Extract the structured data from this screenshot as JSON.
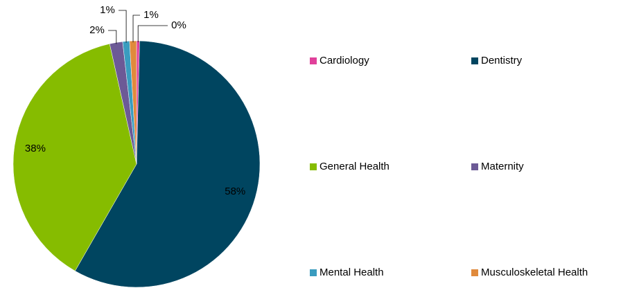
{
  "chart_data": {
    "type": "pie",
    "categories": [
      "Cardiology",
      "Dentistry",
      "General Health",
      "Maternity",
      "Mental Health",
      "Musculoskeletal Health"
    ],
    "values": [
      0.4,
      57.9,
      38.2,
      1.7,
      0.9,
      0.9
    ],
    "value_labels": [
      "0%",
      "58%",
      "38%",
      "2%",
      "1%",
      "1%"
    ],
    "colors": [
      "#e0409a",
      "#004560",
      "#86bc00",
      "#6c5a96",
      "#3a9cbf",
      "#e08a3c"
    ],
    "legend": "right"
  }
}
